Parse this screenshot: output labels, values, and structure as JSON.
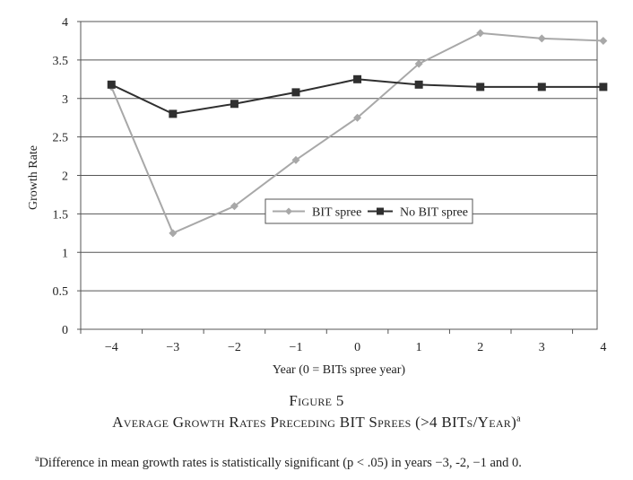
{
  "chart_data": {
    "type": "line",
    "xlabel": "Year (0 = BITs spree year)",
    "ylabel": "Growth Rate",
    "x": [
      -4,
      -3,
      -2,
      -1,
      0,
      1,
      2,
      3,
      4
    ],
    "x_tick_labels": [
      "−4",
      "−3",
      "−2",
      "−1",
      "0",
      "1",
      "2",
      "3",
      "4"
    ],
    "ylim": [
      0,
      4
    ],
    "y_ticks": [
      0,
      0.5,
      1,
      1.5,
      2,
      2.5,
      3,
      3.5,
      4
    ],
    "y_tick_labels": [
      "0",
      "0.5",
      "1",
      "1.5",
      "2",
      "2.5",
      "3",
      "3.5",
      "4"
    ],
    "grid": "horizontal",
    "legend_position": "center-right",
    "series": [
      {
        "name": "BIT spree",
        "values": [
          3.15,
          1.25,
          1.6,
          2.2,
          2.75,
          3.45,
          3.85,
          3.78,
          3.75
        ],
        "color": "#a8a8a8",
        "marker": "diamond"
      },
      {
        "name": "No BIT spree",
        "values": [
          3.18,
          2.8,
          2.93,
          3.08,
          3.25,
          3.18,
          3.15,
          3.15,
          3.15
        ],
        "color": "#2f2f2f",
        "marker": "square"
      }
    ]
  },
  "caption": {
    "figure_label": "Figure 5",
    "title": "Average Growth Rates Preceding BIT Sprees (>4 BITs/Year)",
    "title_marker": "a"
  },
  "footnote": {
    "marker": "a",
    "text": "Difference in mean growth rates is statistically significant (p < .05) in years −3, -2, −1 and 0."
  }
}
